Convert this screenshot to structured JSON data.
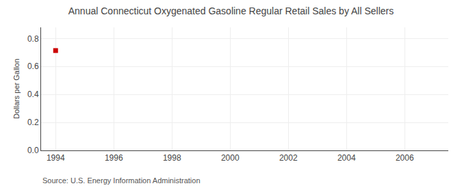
{
  "chart_data": {
    "type": "scatter",
    "title": "Annual Connecticut Oxygenated Gasoline Regular Retail Sales by All Sellers",
    "y_label": "Dollars per Gallon",
    "annotations": [
      "Source: U.S. Energy Information Administration"
    ],
    "x": [
      1994
    ],
    "values": [
      0.714
    ],
    "color": "#cc0000",
    "marker": "square",
    "xlim": [
      1993.5,
      2007.5
    ],
    "xticks": [
      1994,
      1996,
      1998,
      2000,
      2002,
      2004,
      2006
    ],
    "ylim": [
      0.0,
      0.88
    ],
    "yticks": [
      {
        "value": 0.0,
        "label": "0.0"
      },
      0.2,
      0.4,
      0.6,
      0.8
    ],
    "grid": true
  }
}
